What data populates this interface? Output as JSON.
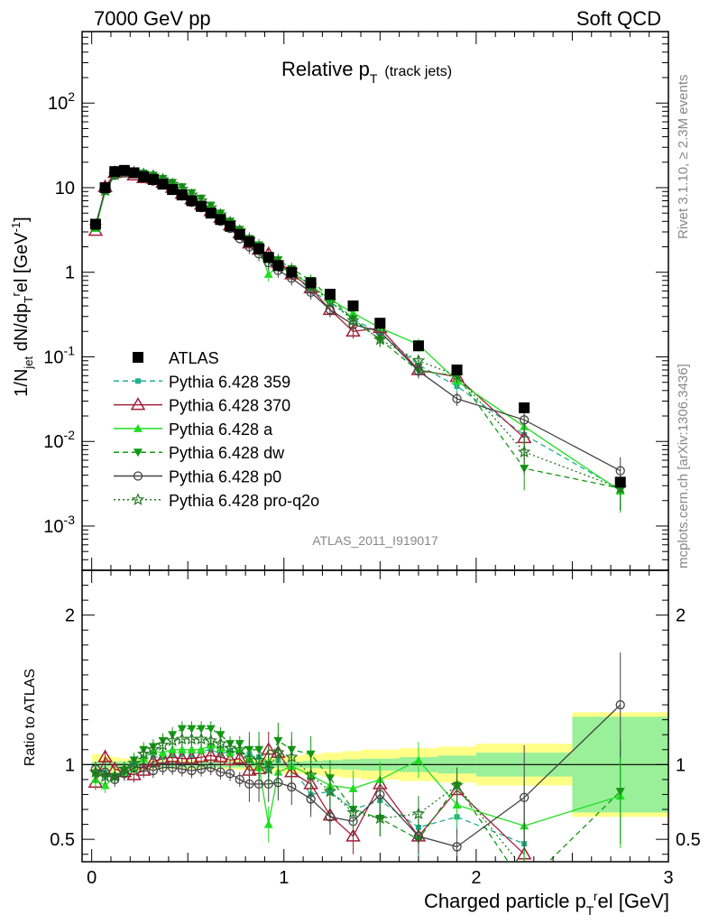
{
  "header": {
    "left": "7000 GeV pp",
    "right": "Soft QCD"
  },
  "side_labels": {
    "rivet": "Rivet 3.1.10, ≥ 2.3M events",
    "mcplots": "mcplots.cern.ch [arXiv:1306.3436]"
  },
  "analysis_id": "ATLAS_2011_I919017",
  "chart_data": [
    {
      "type": "line",
      "panel": "main",
      "title": "Relative p_T (track jets)",
      "title_main": "Relative p",
      "title_sub": "T",
      "title_suffix": "(track jets)",
      "ylabel": "1/N_jet dN/dp_T^rel [GeV^-1]",
      "yscale": "log",
      "ylim": [
        0.0003,
        700
      ],
      "xlim": [
        -0.05,
        3.0
      ],
      "y_ticks": [
        "1",
        "10",
        "10^2",
        "10^-1",
        "10^-2",
        "10^-3"
      ],
      "legend_position": "left-middle",
      "series": [
        {
          "name": "ATLAS",
          "color": "#000000",
          "x": [
            0.02,
            0.07,
            0.12,
            0.17,
            0.22,
            0.27,
            0.32,
            0.37,
            0.42,
            0.47,
            0.52,
            0.57,
            0.62,
            0.67,
            0.72,
            0.77,
            0.82,
            0.87,
            0.92,
            0.97,
            1.04,
            1.14,
            1.24,
            1.36,
            1.5,
            1.7,
            1.9,
            2.25,
            2.75
          ],
          "y": [
            3.7,
            10.0,
            15.5,
            16.0,
            15.0,
            13.5,
            12.5,
            11.0,
            9.5,
            8.2,
            7.0,
            6.0,
            5.0,
            4.2,
            3.5,
            2.8,
            2.3,
            1.9,
            1.5,
            1.2,
            1.0,
            0.75,
            0.55,
            0.4,
            0.25,
            0.135,
            0.07,
            0.025,
            0.0033
          ]
        },
        {
          "name": "Pythia 6.428 359",
          "color": "#20b090",
          "x": [
            0.02,
            0.07,
            0.12,
            0.17,
            0.22,
            0.27,
            0.32,
            0.37,
            0.42,
            0.47,
            0.52,
            0.57,
            0.62,
            0.67,
            0.72,
            0.77,
            0.82,
            0.87,
            0.92,
            0.97,
            1.04,
            1.14,
            1.24,
            1.36,
            1.5,
            1.7,
            1.9,
            2.25,
            2.75
          ],
          "y": [
            3.5,
            9.5,
            14.5,
            15.5,
            15.0,
            14.0,
            13.0,
            11.5,
            10.0,
            8.8,
            7.6,
            6.5,
            5.5,
            4.6,
            3.8,
            3.1,
            2.5,
            2.0,
            1.45,
            1.25,
            1.0,
            0.6,
            0.45,
            0.28,
            0.19,
            0.08,
            0.045,
            0.012,
            0.0027
          ]
        },
        {
          "name": "Pythia 6.428 370",
          "color": "#a0203a",
          "x": [
            0.02,
            0.07,
            0.12,
            0.17,
            0.22,
            0.27,
            0.32,
            0.37,
            0.42,
            0.47,
            0.52,
            0.57,
            0.62,
            0.67,
            0.72,
            0.77,
            0.82,
            0.87,
            0.92,
            0.97,
            1.04,
            1.14,
            1.24,
            1.36,
            1.5,
            1.7,
            1.9,
            2.25
          ],
          "y": [
            3.1,
            10.2,
            15.0,
            15.2,
            14.0,
            13.0,
            12.8,
            11.5,
            10.0,
            8.5,
            7.3,
            6.3,
            5.3,
            4.4,
            3.6,
            2.9,
            2.2,
            1.85,
            1.65,
            1.3,
            0.95,
            0.65,
            0.36,
            0.2,
            0.22,
            0.07,
            0.058,
            0.011
          ]
        },
        {
          "name": "Pythia 6.428 a",
          "color": "#22dd22",
          "x": [
            0.02,
            0.07,
            0.12,
            0.17,
            0.22,
            0.27,
            0.32,
            0.37,
            0.42,
            0.47,
            0.52,
            0.57,
            0.62,
            0.67,
            0.72,
            0.77,
            0.82,
            0.87,
            0.92,
            0.97,
            1.04,
            1.14,
            1.24,
            1.36,
            1.5,
            1.7,
            1.9,
            2.25,
            2.75
          ],
          "y": [
            3.3,
            9.0,
            14.0,
            15.0,
            14.5,
            14.0,
            13.5,
            12.0,
            10.5,
            9.0,
            7.8,
            6.6,
            5.6,
            4.7,
            3.8,
            3.1,
            2.4,
            1.9,
            0.95,
            1.15,
            1.0,
            0.7,
            0.48,
            0.33,
            0.22,
            0.14,
            0.052,
            0.015,
            0.0026
          ]
        },
        {
          "name": "Pythia 6.428 dw",
          "color": "#119911",
          "x": [
            0.02,
            0.07,
            0.12,
            0.17,
            0.22,
            0.27,
            0.32,
            0.37,
            0.42,
            0.47,
            0.52,
            0.57,
            0.62,
            0.67,
            0.72,
            0.77,
            0.82,
            0.87,
            0.92,
            0.97,
            1.04,
            1.14,
            1.24,
            1.36,
            1.5,
            1.7,
            1.9,
            2.25,
            2.75
          ],
          "y": [
            3.4,
            9.2,
            14.2,
            15.3,
            15.5,
            14.8,
            14.0,
            12.8,
            11.5,
            10.2,
            8.7,
            7.5,
            6.2,
            5.0,
            4.0,
            3.2,
            2.5,
            2.1,
            1.5,
            1.4,
            1.1,
            0.8,
            0.5,
            0.28,
            0.16,
            0.068,
            0.06,
            0.0048,
            0.0028
          ]
        },
        {
          "name": "Pythia 6.428 p0",
          "color": "#444444",
          "x": [
            0.02,
            0.07,
            0.12,
            0.17,
            0.22,
            0.27,
            0.32,
            0.37,
            0.42,
            0.47,
            0.52,
            0.57,
            0.62,
            0.67,
            0.72,
            0.77,
            0.82,
            0.87,
            0.92,
            0.97,
            1.04,
            1.14,
            1.24,
            1.36,
            1.5,
            1.7,
            1.9,
            2.25,
            2.75
          ],
          "y": [
            3.6,
            9.5,
            14.0,
            15.0,
            14.7,
            13.2,
            12.0,
            10.8,
            9.3,
            8.0,
            6.7,
            5.8,
            4.9,
            4.0,
            3.3,
            2.5,
            2.0,
            1.65,
            1.3,
            1.05,
            0.85,
            0.58,
            0.36,
            0.24,
            0.2,
            0.068,
            0.032,
            0.018,
            0.0045
          ]
        },
        {
          "name": "Pythia 6.428 pro-q2o",
          "color": "#227722",
          "x": [
            0.02,
            0.07,
            0.12,
            0.17,
            0.22,
            0.27,
            0.32,
            0.37,
            0.42,
            0.47,
            0.52,
            0.57,
            0.62,
            0.67,
            0.72,
            0.77,
            0.82,
            0.87,
            0.92,
            0.97,
            1.04,
            1.14,
            1.24,
            1.36,
            1.5,
            1.7,
            1.9,
            2.25,
            2.75
          ],
          "y": [
            3.5,
            9.3,
            14.3,
            15.6,
            15.2,
            14.5,
            13.8,
            12.5,
            11.0,
            9.6,
            8.2,
            7.0,
            5.8,
            4.8,
            3.9,
            3.1,
            2.4,
            1.95,
            1.45,
            1.3,
            1.05,
            0.7,
            0.45,
            0.27,
            0.16,
            0.09,
            0.06,
            0.0075,
            0.0028
          ]
        }
      ]
    },
    {
      "type": "line",
      "panel": "ratio",
      "ylabel": "Ratio to ATLAS",
      "xlabel": "Charged particle p_T^rel [GeV]",
      "ylim": [
        0.35,
        2.3
      ],
      "xlim": [
        -0.05,
        3.0
      ],
      "x_ticks": [
        0,
        1,
        2,
        3
      ],
      "y_ticks": [
        0.5,
        1,
        2
      ],
      "reference_line": 1,
      "band_edges": [
        0,
        0.05,
        0.1,
        0.15,
        0.2,
        0.25,
        0.3,
        0.35,
        0.4,
        0.45,
        0.5,
        0.55,
        0.6,
        0.65,
        0.7,
        0.75,
        0.8,
        0.85,
        0.9,
        0.95,
        1.0,
        1.1,
        1.2,
        1.3,
        1.4,
        1.6,
        1.8,
        2.0,
        2.5,
        3.0
      ],
      "band_stat": [
        0.02,
        0.02,
        0.02,
        0.02,
        0.02,
        0.02,
        0.02,
        0.02,
        0.02,
        0.02,
        0.02,
        0.02,
        0.02,
        0.02,
        0.02,
        0.02,
        0.02,
        0.02,
        0.02,
        0.02,
        0.02,
        0.025,
        0.03,
        0.035,
        0.04,
        0.05,
        0.06,
        0.08,
        0.32
      ],
      "band_total": [
        0.07,
        0.06,
        0.05,
        0.04,
        0.04,
        0.035,
        0.03,
        0.03,
        0.03,
        0.03,
        0.03,
        0.03,
        0.03,
        0.03,
        0.03,
        0.035,
        0.04,
        0.045,
        0.05,
        0.05,
        0.06,
        0.07,
        0.08,
        0.09,
        0.1,
        0.11,
        0.12,
        0.14,
        0.35
      ],
      "series": [
        {
          "name": "Pythia 6.428 359",
          "color": "#20b090",
          "x": [
            0.02,
            0.07,
            0.12,
            0.17,
            0.22,
            0.27,
            0.32,
            0.37,
            0.42,
            0.47,
            0.52,
            0.57,
            0.62,
            0.67,
            0.72,
            0.77,
            0.82,
            0.87,
            0.92,
            0.97,
            1.04,
            1.14,
            1.24,
            1.36,
            1.5,
            1.7,
            1.9,
            2.25
          ],
          "y": [
            0.95,
            0.95,
            0.92,
            0.95,
            1.0,
            1.04,
            1.05,
            1.05,
            1.06,
            1.07,
            1.06,
            1.09,
            1.1,
            1.07,
            1.09,
            1.08,
            1.07,
            1.05,
            0.97,
            1.03,
            0.99,
            0.8,
            0.82,
            0.7,
            0.76,
            0.58,
            0.65,
            0.47
          ]
        },
        {
          "name": "Pythia 6.428 370",
          "color": "#a0203a",
          "x": [
            0.02,
            0.07,
            0.12,
            0.17,
            0.22,
            0.27,
            0.32,
            0.37,
            0.42,
            0.47,
            0.52,
            0.57,
            0.62,
            0.67,
            0.72,
            0.77,
            0.82,
            0.87,
            0.92,
            0.97,
            1.04,
            1.14,
            1.24,
            1.36,
            1.5,
            1.7,
            1.9,
            2.25
          ],
          "y": [
            0.88,
            1.05,
            0.97,
            0.95,
            0.93,
            0.96,
            1.02,
            1.04,
            1.05,
            1.04,
            1.04,
            1.05,
            1.06,
            1.05,
            1.03,
            1.04,
            0.96,
            0.97,
            1.1,
            1.08,
            0.95,
            0.87,
            0.66,
            0.52,
            0.87,
            0.52,
            0.83,
            0.4
          ]
        },
        {
          "name": "Pythia 6.428 a",
          "color": "#22dd22",
          "x": [
            0.02,
            0.07,
            0.12,
            0.17,
            0.22,
            0.27,
            0.32,
            0.37,
            0.42,
            0.47,
            0.52,
            0.57,
            0.62,
            0.67,
            0.72,
            0.77,
            0.82,
            0.87,
            0.92,
            0.97,
            1.04,
            1.14,
            1.24,
            1.36,
            1.5,
            1.7,
            1.9,
            2.25,
            2.75
          ],
          "y": [
            0.9,
            0.86,
            0.92,
            0.95,
            0.97,
            1.04,
            1.09,
            1.08,
            1.1,
            1.1,
            1.1,
            1.1,
            1.13,
            1.11,
            1.08,
            1.1,
            1.04,
            0.98,
            0.6,
            0.95,
            0.99,
            0.93,
            0.86,
            0.84,
            0.9,
            1.03,
            0.73,
            0.59,
            0.79
          ]
        },
        {
          "name": "Pythia 6.428 dw",
          "color": "#119911",
          "x": [
            0.02,
            0.07,
            0.12,
            0.17,
            0.22,
            0.27,
            0.32,
            0.37,
            0.42,
            0.47,
            0.52,
            0.57,
            0.62,
            0.67,
            0.72,
            0.77,
            0.82,
            0.87,
            0.92,
            0.97,
            1.04,
            1.14,
            1.24,
            1.36,
            1.5,
            1.7,
            1.9,
            2.25,
            2.75
          ],
          "y": [
            0.93,
            0.92,
            0.92,
            0.96,
            1.03,
            1.1,
            1.12,
            1.16,
            1.2,
            1.24,
            1.24,
            1.24,
            1.24,
            1.2,
            1.14,
            1.14,
            1.1,
            1.1,
            1.0,
            1.16,
            1.1,
            1.07,
            0.91,
            0.7,
            0.64,
            0.5,
            0.86,
            0.19,
            0.82
          ]
        },
        {
          "name": "Pythia 6.428 p0",
          "color": "#444444",
          "x": [
            0.02,
            0.07,
            0.12,
            0.17,
            0.22,
            0.27,
            0.32,
            0.37,
            0.42,
            0.47,
            0.52,
            0.57,
            0.62,
            0.67,
            0.72,
            0.77,
            0.82,
            0.87,
            0.92,
            0.97,
            1.04,
            1.14,
            1.24,
            1.36,
            1.5,
            1.7,
            1.9,
            2.25,
            2.75
          ],
          "y": [
            0.97,
            0.95,
            0.9,
            0.94,
            0.98,
            0.98,
            0.96,
            0.98,
            0.98,
            0.97,
            0.96,
            0.97,
            0.98,
            0.95,
            0.94,
            0.9,
            0.87,
            0.87,
            0.87,
            0.88,
            0.85,
            0.77,
            0.65,
            0.62,
            0.8,
            0.52,
            0.45,
            0.78,
            1.4
          ]
        },
        {
          "name": "Pythia 6.428 pro-q2o",
          "color": "#227722",
          "x": [
            0.02,
            0.07,
            0.12,
            0.17,
            0.22,
            0.27,
            0.32,
            0.37,
            0.42,
            0.47,
            0.52,
            0.57,
            0.62,
            0.67,
            0.72,
            0.77,
            0.82,
            0.87,
            0.92,
            0.97,
            1.04,
            1.14,
            1.24,
            1.36,
            1.5,
            1.7,
            1.9,
            2.25
          ],
          "y": [
            0.95,
            0.92,
            0.92,
            0.97,
            1.01,
            1.07,
            1.1,
            1.13,
            1.16,
            1.17,
            1.17,
            1.17,
            1.16,
            1.14,
            1.11,
            1.1,
            1.04,
            1.03,
            0.97,
            1.08,
            1.05,
            0.93,
            0.82,
            0.68,
            0.64,
            0.67,
            0.86,
            0.3
          ]
        }
      ]
    }
  ]
}
